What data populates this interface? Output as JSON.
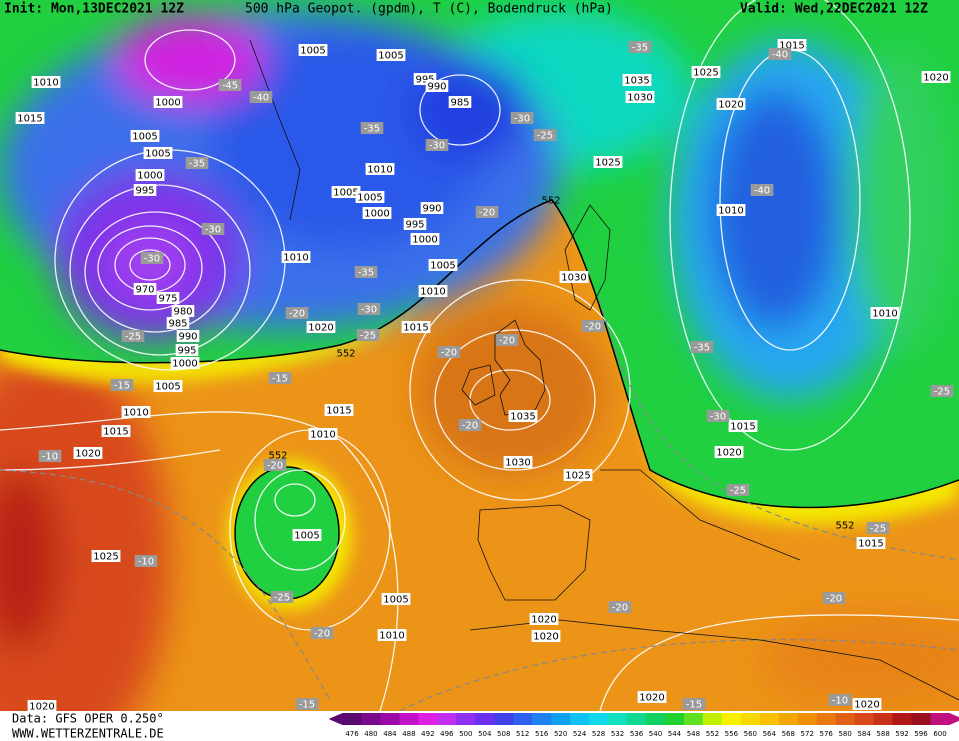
{
  "header": {
    "init": "Init: Mon,13DEC2021 12Z",
    "title": "500 hPa Geopot. (gpdm), T (C), Bodendruck (hPa)",
    "valid": "Valid: Wed,22DEC2021 12Z"
  },
  "footer": {
    "data": "Data: GFS OPER 0.250°",
    "site": "WWW.WETTERZENTRALE.DE"
  },
  "legend": {
    "values": [
      476,
      480,
      484,
      488,
      492,
      496,
      500,
      504,
      508,
      512,
      516,
      520,
      524,
      528,
      532,
      536,
      540,
      544,
      548,
      552,
      556,
      560,
      564,
      568,
      572,
      576,
      580,
      584,
      588,
      592,
      596,
      600
    ],
    "colors": [
      "#5a0a6e",
      "#7a0a8c",
      "#9a0aa8",
      "#c010c8",
      "#e020e0",
      "#c030f0",
      "#9030f0",
      "#6a30f0",
      "#4040e8",
      "#3060f0",
      "#2080f0",
      "#10a0f0",
      "#10c0f0",
      "#10d8e8",
      "#10e0c0",
      "#10d890",
      "#10d060",
      "#20d030",
      "#60e020",
      "#c0f000",
      "#f8f000",
      "#f8d800",
      "#f8c000",
      "#f0a800",
      "#f09000",
      "#e87810",
      "#e06018",
      "#d84818",
      "#c83018",
      "#b01818",
      "#981020",
      "#c01080"
    ]
  },
  "isobar_labels": [
    "1005",
    "1005",
    "1010",
    "1000",
    "995",
    "990",
    "985",
    "1035",
    "1030",
    "1025",
    "1015",
    "1020",
    "1020",
    "1015",
    "1005",
    "1005",
    "1000",
    "995",
    "1010",
    "1005",
    "1005",
    "1000",
    "990",
    "995",
    "1000",
    "1025",
    "1010",
    "1010",
    "1005",
    "1030",
    "1010",
    "970",
    "975",
    "980",
    "985",
    "990",
    "995",
    "1000",
    "1020",
    "1015",
    "1010",
    "1005",
    "1010",
    "1015",
    "1015",
    "1010",
    "1035",
    "1020",
    "1015",
    "1020",
    "1030",
    "1025",
    "1005",
    "1025",
    "1015",
    "1005",
    "1010",
    "1020",
    "1020",
    "1020",
    "1020",
    "1020"
  ],
  "temperature_labels": [
    "-45",
    "-40",
    "-35",
    "-30",
    "-30",
    "-25",
    "-35",
    "-40",
    "-35",
    "-30",
    "-20",
    "-40",
    "-35",
    "-30",
    "-20",
    "-25",
    "-25",
    "-20",
    "-20",
    "-20",
    "-35",
    "-15",
    "-15",
    "-20",
    "-30",
    "-25",
    "-10",
    "-20",
    "-25",
    "-25",
    "-10",
    "-25",
    "-20",
    "-20",
    "-20",
    "-15",
    "-15",
    "-10",
    "-30"
  ],
  "contour_552_labels": [
    "552",
    "552",
    "552",
    "552"
  ]
}
